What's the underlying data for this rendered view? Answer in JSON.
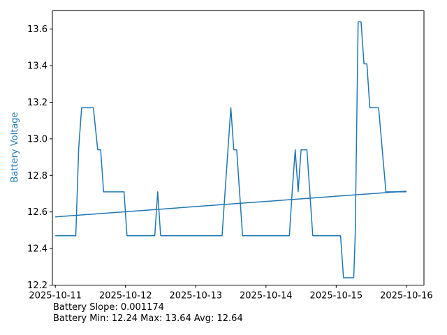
{
  "chart_data": {
    "type": "line",
    "ylabel": "Battery Voltage",
    "xlabel": "",
    "title": "",
    "ylim": [
      12.2,
      13.7
    ],
    "xlim": [
      "2025-10-10 23:00",
      "2025-10-16 06:00"
    ],
    "xticks": [
      "2025-10-11",
      "2025-10-12",
      "2025-10-13",
      "2025-10-14",
      "2025-10-15",
      "2025-10-16"
    ],
    "yticks": [
      "12.2",
      "12.4",
      "12.6",
      "12.8",
      "13.0",
      "13.2",
      "13.4",
      "13.6"
    ],
    "grid": false,
    "series_color": "#1f77b4",
    "ylabel_color": "#1f77b4",
    "series": [
      {
        "points": [
          [
            "2025-10-11 00:00",
            12.47
          ],
          [
            "2025-10-11 07:00",
            12.47
          ],
          [
            "2025-10-11 08:00",
            12.95
          ],
          [
            "2025-10-11 09:00",
            13.17
          ],
          [
            "2025-10-11 13:00",
            13.17
          ],
          [
            "2025-10-11 14:30",
            12.94
          ],
          [
            "2025-10-11 15:30",
            12.94
          ],
          [
            "2025-10-11 16:30",
            12.71
          ],
          [
            "2025-10-11 23:30",
            12.71
          ],
          [
            "2025-10-12 00:30",
            12.47
          ],
          [
            "2025-10-12 10:00",
            12.47
          ],
          [
            "2025-10-12 11:00",
            12.71
          ],
          [
            "2025-10-12 12:00",
            12.47
          ],
          [
            "2025-10-13 09:00",
            12.47
          ],
          [
            "2025-10-13 11:00",
            12.94
          ],
          [
            "2025-10-13 12:00",
            13.17
          ],
          [
            "2025-10-13 13:00",
            12.94
          ],
          [
            "2025-10-13 14:00",
            12.94
          ],
          [
            "2025-10-13 16:00",
            12.47
          ],
          [
            "2025-10-14 08:00",
            12.47
          ],
          [
            "2025-10-14 09:00",
            12.72
          ],
          [
            "2025-10-14 10:00",
            12.94
          ],
          [
            "2025-10-14 11:00",
            12.71
          ],
          [
            "2025-10-14 12:00",
            12.94
          ],
          [
            "2025-10-14 14:00",
            12.94
          ],
          [
            "2025-10-14 16:00",
            12.47
          ],
          [
            "2025-10-15 01:30",
            12.47
          ],
          [
            "2025-10-15 02:30",
            12.24
          ],
          [
            "2025-10-15 06:00",
            12.24
          ],
          [
            "2025-10-15 06:30",
            12.47
          ],
          [
            "2025-10-15 07:30",
            13.64
          ],
          [
            "2025-10-15 08:30",
            13.64
          ],
          [
            "2025-10-15 09:30",
            13.41
          ],
          [
            "2025-10-15 10:30",
            13.41
          ],
          [
            "2025-10-15 11:30",
            13.17
          ],
          [
            "2025-10-15 14:30",
            13.17
          ],
          [
            "2025-10-15 17:00",
            12.71
          ],
          [
            "2025-10-16 00:00",
            12.71
          ]
        ]
      },
      {
        "points": [
          [
            "2025-10-11 00:00",
            12.573
          ],
          [
            "2025-10-16 00:00",
            12.714
          ]
        ]
      }
    ]
  },
  "stats": {
    "line1": "Battery Slope: 0.001174",
    "line2": "Battery Min: 12.24 Max: 13.64 Avg: 12.64"
  }
}
